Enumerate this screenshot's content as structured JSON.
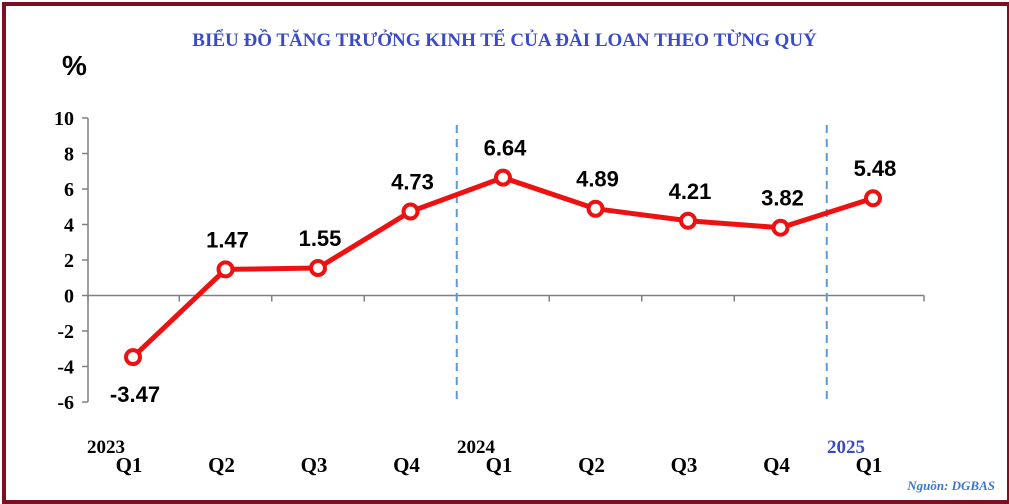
{
  "title": "BIỂU ĐỒ TĂNG TRƯỞNG KINH TẾ CỦA ĐÀI LOAN THEO TỪNG QUÝ",
  "unit": "%",
  "source": "Nguồn: DGBAS",
  "colors": {
    "frame": "#7a1020",
    "line": "#ee1111",
    "title": "#3b4bc8",
    "year_2025": "#3b4bc8",
    "divider": "#5b9bd5",
    "axis": "#808080"
  },
  "chart_data": {
    "type": "line",
    "categories": [
      "Q1",
      "Q2",
      "Q3",
      "Q4",
      "Q1",
      "Q2",
      "Q3",
      "Q4",
      "Q1"
    ],
    "year_labels": [
      {
        "text": "2023",
        "at_index": 0
      },
      {
        "text": "2024",
        "at_index": 4
      },
      {
        "text": "2025",
        "at_index": 8
      }
    ],
    "series": [
      {
        "values": [
          -3.47,
          1.47,
          1.55,
          4.73,
          6.64,
          4.89,
          4.21,
          3.82,
          5.48
        ]
      }
    ],
    "data_labels": [
      "-3.47",
      "1.47",
      "1.55",
      "4.73",
      "6.64",
      "4.89",
      "4.21",
      "3.82",
      "5.48"
    ],
    "ylim": [
      -6,
      10
    ],
    "yticks": [
      10,
      8,
      6,
      4,
      2,
      0,
      -2,
      -4,
      -6
    ],
    "grid": false,
    "year_dividers_after_index": [
      3,
      7
    ]
  }
}
